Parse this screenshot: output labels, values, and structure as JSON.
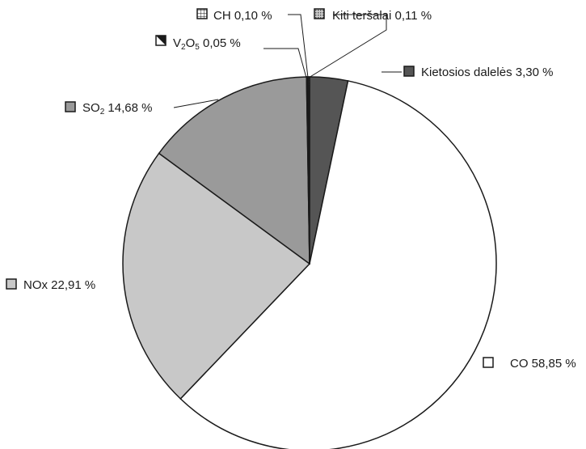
{
  "chart_data": {
    "type": "pie",
    "title": "",
    "start": "top",
    "direction": "clockwise",
    "legend": "none",
    "slices": [
      {
        "label": "Kietosios dalelės",
        "text": "Kietosios dalelės  3,30 %",
        "value": 3.3,
        "color": "#555555",
        "pattern": "solid"
      },
      {
        "label": "CO",
        "text": "CO 58,85 %",
        "value": 58.85,
        "color": "#ffffff",
        "pattern": "solid"
      },
      {
        "label": "NOx",
        "text": "NOx 22,91 %",
        "value": 22.91,
        "color": "#c8c8c8",
        "pattern": "solid"
      },
      {
        "label": "SO2",
        "name_main": "SO",
        "name_sub": "2",
        "text": " 14,68 %",
        "value": 14.68,
        "color": "#9a9a9a",
        "pattern": "solid"
      },
      {
        "label": "V2O5",
        "name_main": "V",
        "name_sub": "2",
        "name_main2": "O",
        "name_sub2": "5",
        "text": " 0,05 %",
        "value": 0.05,
        "color": "#ffffff",
        "pattern": "diagonal"
      },
      {
        "label": "CH",
        "text": "CH 0,10 %",
        "value": 0.1,
        "color": "#ffffff",
        "pattern": "grid"
      },
      {
        "label": "Kiti teršalai",
        "text": "Kiti teršalai 0,11 %",
        "value": 0.11,
        "color": "#d0d0d0",
        "pattern": "dots"
      }
    ]
  }
}
